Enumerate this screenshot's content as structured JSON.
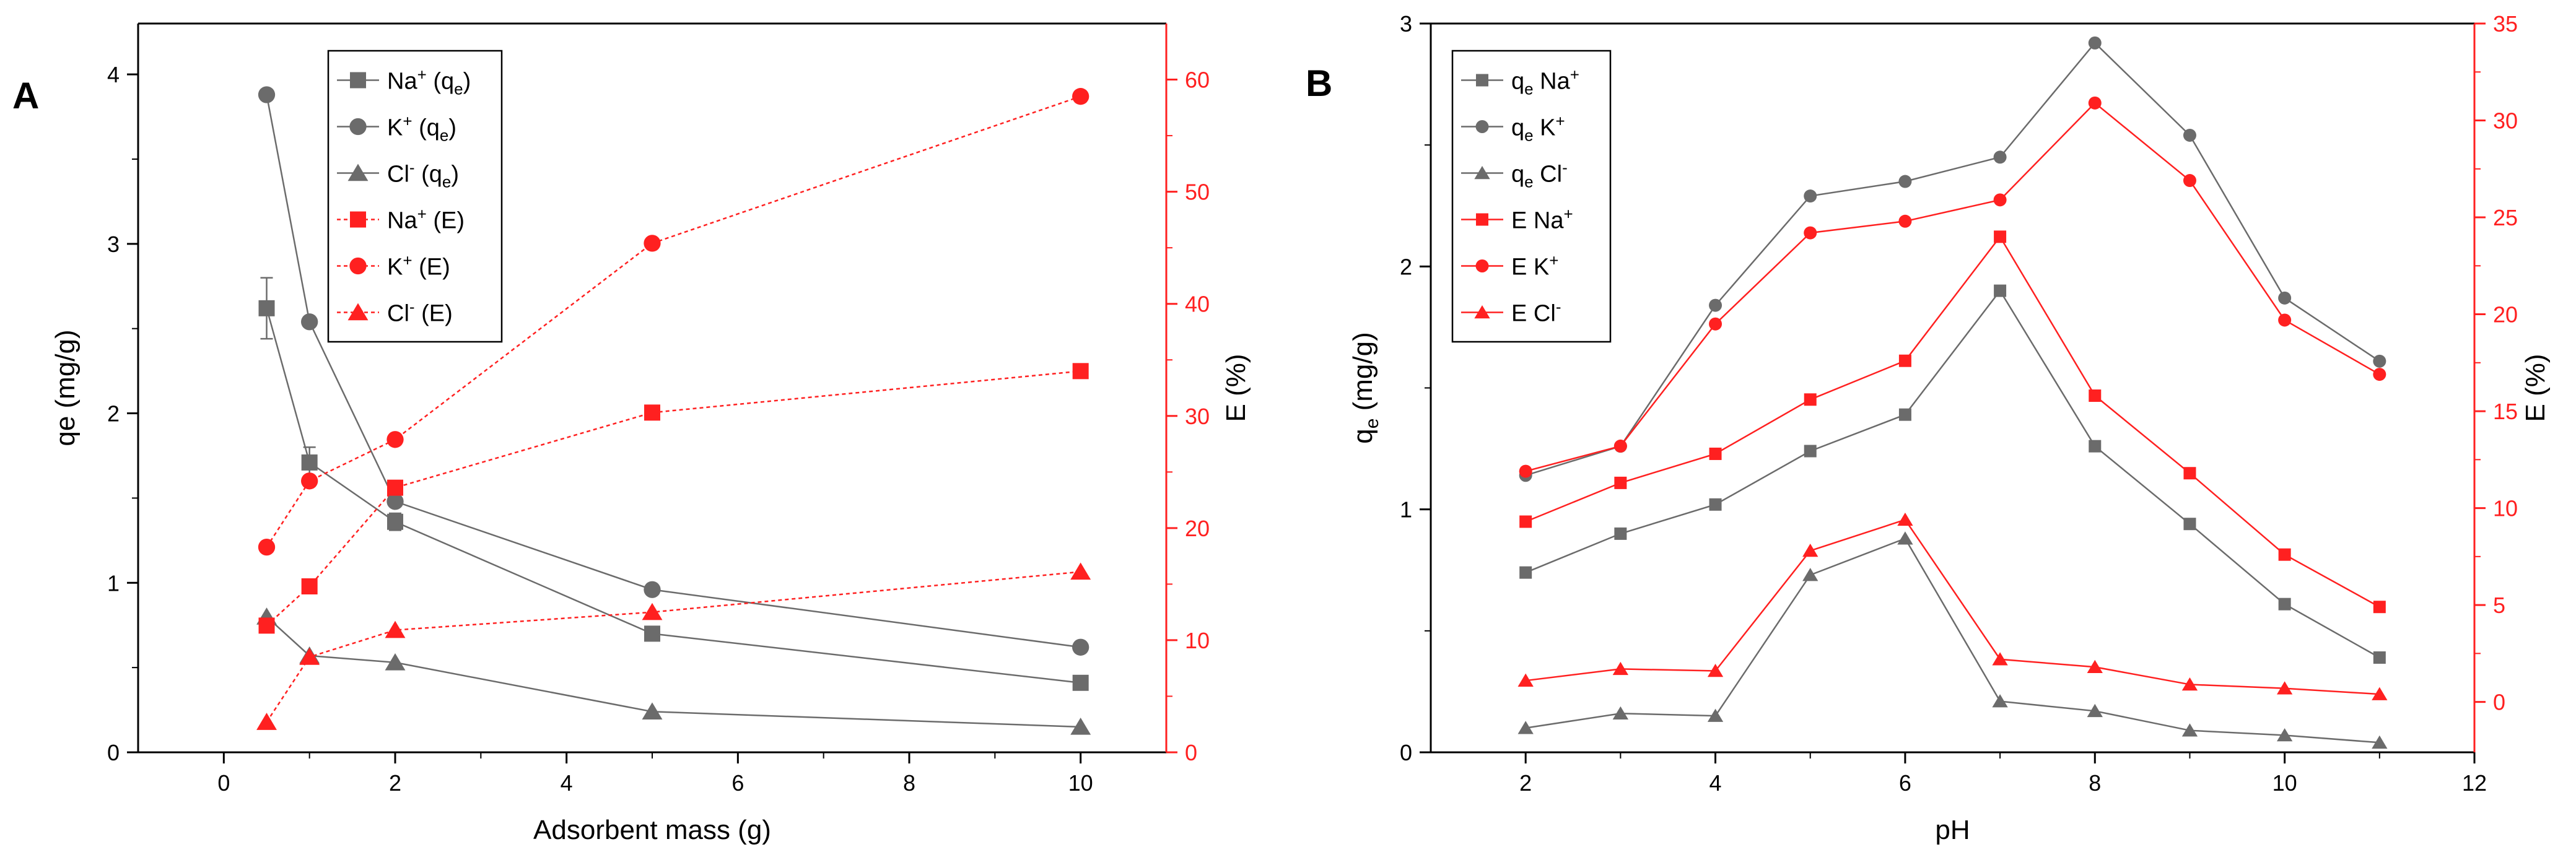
{
  "colors": {
    "gray": "#6b6b6b",
    "red": "#ff2020",
    "axis": "#000000"
  },
  "chart_data": [
    {
      "panel_label": "A",
      "type": "line",
      "xlabel": "Adsorbent mass (g)",
      "ylabel": "qe (mg/g)",
      "y2label": "E (%)",
      "xlim": [
        -1,
        11
      ],
      "ylim": [
        0,
        4.3
      ],
      "y2lim": [
        0,
        65
      ],
      "xticks": [
        0,
        2,
        4,
        6,
        8,
        10
      ],
      "yticks": [
        0,
        1,
        2,
        3,
        4
      ],
      "y2ticks": [
        0,
        10,
        20,
        30,
        40,
        50,
        60
      ],
      "legend_position": "top-center",
      "series": [
        {
          "name": "Na+ (qe)",
          "ion": "Na",
          "sup": "+",
          "qual": "(q",
          "sub": "e",
          "tail": ")",
          "axis": "left",
          "marker": "square",
          "color": "gray",
          "line": "solid",
          "x": [
            0.5,
            1,
            2,
            5,
            10
          ],
          "y": [
            2.62,
            1.71,
            1.36,
            0.7,
            0.41
          ],
          "err": [
            0.18,
            0.09,
            0.05,
            0,
            0
          ]
        },
        {
          "name": "K+ (qe)",
          "ion": "K",
          "sup": "+",
          "qual": "(q",
          "sub": "e",
          "tail": ")",
          "axis": "left",
          "marker": "circle",
          "color": "gray",
          "line": "solid",
          "x": [
            0.5,
            1,
            2,
            5,
            10
          ],
          "y": [
            3.88,
            2.54,
            1.48,
            0.96,
            0.62
          ]
        },
        {
          "name": "Cl- (qe)",
          "ion": "Cl",
          "sup": "-",
          "qual": "(q",
          "sub": "e",
          "tail": ")",
          "axis": "left",
          "marker": "triangle",
          "color": "gray",
          "line": "solid",
          "x": [
            0.5,
            1,
            2,
            5,
            10
          ],
          "y": [
            0.8,
            0.57,
            0.53,
            0.24,
            0.15
          ]
        },
        {
          "name": "Na+ (E)",
          "ion": "Na",
          "sup": "+",
          "qual": "(E)",
          "sub": "",
          "tail": "",
          "axis": "right",
          "marker": "square",
          "color": "red",
          "line": "dotted",
          "x": [
            0.5,
            1,
            2,
            5,
            10
          ],
          "y": [
            11.3,
            14.8,
            23.6,
            30.3,
            34.0
          ]
        },
        {
          "name": "K+ (E)",
          "ion": "K",
          "sup": "+",
          "qual": "(E)",
          "sub": "",
          "tail": "",
          "axis": "right",
          "marker": "circle",
          "color": "red",
          "line": "dotted",
          "x": [
            0.5,
            1,
            2,
            5,
            10
          ],
          "y": [
            18.3,
            24.2,
            27.9,
            45.4,
            58.5
          ]
        },
        {
          "name": "Cl- (E)",
          "ion": "Cl",
          "sup": "-",
          "qual": "(E)",
          "sub": "",
          "tail": "",
          "axis": "right",
          "marker": "triangle",
          "color": "red",
          "line": "dotted",
          "x": [
            0.5,
            1,
            2,
            5,
            10
          ],
          "y": [
            2.7,
            8.5,
            10.9,
            12.5,
            16.1
          ]
        }
      ]
    },
    {
      "panel_label": "B",
      "type": "line",
      "xlabel": "pH",
      "ylabel_main": "q",
      "ylabel_sub": "e",
      "ylabel_tail": " (mg/g)",
      "y2label": "E (%)",
      "xlim": [
        1,
        12
      ],
      "ylim": [
        0,
        3
      ],
      "y2lim": [
        -2.6,
        35
      ],
      "xticks": [
        2,
        4,
        6,
        8,
        10,
        12
      ],
      "yticks": [
        0,
        1,
        2,
        3
      ],
      "y2ticks": [
        0,
        5,
        10,
        15,
        20,
        25,
        30,
        35
      ],
      "legend_position": "top-left",
      "series": [
        {
          "name": "qe Na+",
          "pre": "q",
          "presub": "e",
          "ion": "Na",
          "sup": "+",
          "axis": "left",
          "marker": "square",
          "color": "gray",
          "line": "solid",
          "x": [
            2,
            3,
            4,
            5,
            6,
            7,
            8,
            9,
            10,
            11
          ],
          "y": [
            0.74,
            0.9,
            1.02,
            1.24,
            1.39,
            1.9,
            1.26,
            0.94,
            0.61,
            0.39
          ]
        },
        {
          "name": "qe K+",
          "pre": "q",
          "presub": "e",
          "ion": "K",
          "sup": "+",
          "axis": "left",
          "marker": "circle",
          "color": "gray",
          "line": "solid",
          "x": [
            2,
            3,
            4,
            5,
            6,
            7,
            8,
            9,
            10,
            11
          ],
          "y": [
            1.14,
            1.26,
            1.84,
            2.29,
            2.35,
            2.45,
            2.92,
            2.54,
            1.87,
            1.61
          ]
        },
        {
          "name": "qe Cl-",
          "pre": "q",
          "presub": "e",
          "ion": "Cl",
          "sup": "-",
          "axis": "left",
          "marker": "triangle",
          "color": "gray",
          "line": "solid",
          "x": [
            2,
            3,
            4,
            5,
            6,
            7,
            8,
            9,
            10,
            11
          ],
          "y": [
            0.1,
            0.16,
            0.15,
            0.73,
            0.88,
            0.21,
            0.17,
            0.09,
            0.07,
            0.04
          ]
        },
        {
          "name": "E Na+",
          "pre": "E",
          "presub": "",
          "ion": "Na",
          "sup": "+",
          "axis": "right",
          "marker": "square",
          "color": "red",
          "line": "solid",
          "x": [
            2,
            3,
            4,
            5,
            6,
            7,
            8,
            9,
            10,
            11
          ],
          "y": [
            9.3,
            11.3,
            12.8,
            15.6,
            17.6,
            24.0,
            15.8,
            11.8,
            7.6,
            4.9
          ]
        },
        {
          "name": "E K+",
          "pre": "E",
          "presub": "",
          "ion": "K",
          "sup": "+",
          "axis": "right",
          "marker": "circle",
          "color": "red",
          "line": "solid",
          "x": [
            2,
            3,
            4,
            5,
            6,
            7,
            8,
            9,
            10,
            11
          ],
          "y": [
            11.9,
            13.2,
            19.5,
            24.2,
            24.8,
            25.9,
            30.9,
            26.9,
            19.7,
            16.9
          ]
        },
        {
          "name": "E Cl-",
          "pre": "E",
          "presub": "",
          "ion": "Cl",
          "sup": "-",
          "axis": "right",
          "marker": "triangle",
          "color": "red",
          "line": "solid",
          "x": [
            2,
            3,
            4,
            5,
            6,
            7,
            8,
            9,
            10,
            11
          ],
          "y": [
            1.1,
            1.7,
            1.6,
            7.8,
            9.4,
            2.2,
            1.8,
            0.9,
            0.7,
            0.4
          ]
        }
      ]
    }
  ]
}
